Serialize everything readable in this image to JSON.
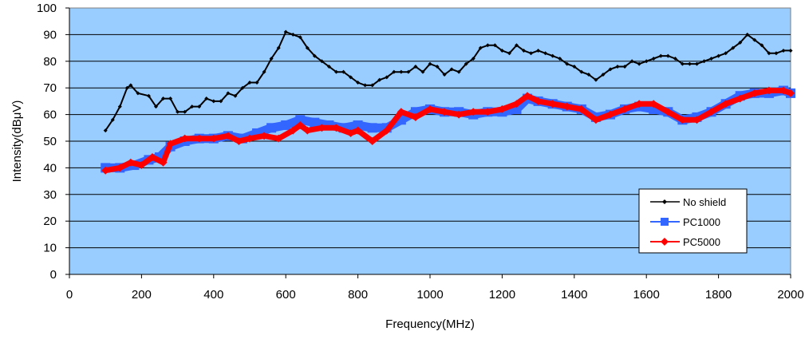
{
  "chart_data": {
    "type": "line",
    "title": "",
    "xlabel": "Frequency(MHz)",
    "ylabel": "Intensity(dBμV)",
    "xlim": [
      0,
      2000
    ],
    "ylim": [
      0,
      100
    ],
    "x_ticks": [
      "0",
      "200",
      "400",
      "600",
      "800",
      "1000",
      "1200",
      "1400",
      "1600",
      "1800",
      "2000"
    ],
    "y_ticks": [
      "0",
      "10",
      "20",
      "30",
      "40",
      "50",
      "60",
      "70",
      "80",
      "90",
      "100"
    ],
    "grid": true,
    "plot_background": "#99ccff",
    "legend_position": "bottom-right",
    "series": [
      {
        "name": "No shield",
        "color": "#000000",
        "marker": "diamond",
        "x": [
          100,
          120,
          140,
          160,
          170,
          190,
          220,
          240,
          260,
          280,
          300,
          320,
          340,
          360,
          380,
          400,
          420,
          440,
          460,
          480,
          500,
          520,
          540,
          560,
          580,
          600,
          620,
          640,
          660,
          680,
          700,
          720,
          740,
          760,
          780,
          800,
          820,
          840,
          860,
          880,
          900,
          920,
          940,
          960,
          980,
          1000,
          1020,
          1040,
          1060,
          1080,
          1100,
          1120,
          1140,
          1160,
          1180,
          1200,
          1220,
          1240,
          1260,
          1280,
          1300,
          1320,
          1340,
          1360,
          1380,
          1400,
          1420,
          1440,
          1460,
          1480,
          1500,
          1520,
          1540,
          1560,
          1580,
          1600,
          1620,
          1640,
          1660,
          1680,
          1700,
          1720,
          1740,
          1760,
          1780,
          1800,
          1820,
          1840,
          1860,
          1880,
          1900,
          1920,
          1940,
          1960,
          1980,
          2000
        ],
        "y": [
          54,
          58,
          63,
          70,
          71,
          68,
          67,
          63,
          66,
          66,
          61,
          61,
          63,
          63,
          66,
          65,
          65,
          68,
          67,
          70,
          72,
          72,
          76,
          81,
          85,
          91,
          90,
          89,
          85,
          82,
          80,
          78,
          76,
          76,
          74,
          72,
          71,
          71,
          73,
          74,
          76,
          76,
          76,
          78,
          76,
          79,
          78,
          75,
          77,
          76,
          79,
          81,
          85,
          86,
          86,
          84,
          83,
          86,
          84,
          83,
          84,
          83,
          82,
          81,
          79,
          78,
          76,
          75,
          73,
          75,
          77,
          78,
          78,
          80,
          79,
          80,
          81,
          82,
          82,
          81,
          79,
          79,
          79,
          80,
          81,
          82,
          83,
          85,
          87,
          90,
          88,
          86,
          83,
          83,
          84,
          84
        ]
      },
      {
        "name": "PC1000",
        "color": "#3366ff",
        "marker": "square",
        "x": [
          100,
          140,
          180,
          220,
          250,
          280,
          320,
          360,
          400,
          440,
          480,
          520,
          560,
          600,
          640,
          680,
          720,
          760,
          800,
          840,
          880,
          920,
          960,
          1000,
          1040,
          1080,
          1120,
          1160,
          1200,
          1240,
          1270,
          1300,
          1340,
          1380,
          1420,
          1460,
          1500,
          1540,
          1580,
          1620,
          1660,
          1700,
          1740,
          1780,
          1820,
          1860,
          1900,
          1940,
          1980,
          2000
        ],
        "y": [
          40,
          40,
          41,
          43,
          44,
          48,
          50,
          51,
          51,
          52,
          51,
          53,
          55,
          56,
          58,
          57,
          56,
          55,
          56,
          55,
          55,
          58,
          61,
          62,
          61,
          61,
          60,
          61,
          61,
          62,
          66,
          65,
          64,
          63,
          62,
          59,
          60,
          62,
          63,
          62,
          61,
          58,
          59,
          61,
          64,
          67,
          68,
          68,
          69,
          68
        ]
      },
      {
        "name": "PC5000",
        "color": "#ff0000",
        "marker": "diamond",
        "x": [
          100,
          140,
          170,
          200,
          230,
          260,
          280,
          320,
          360,
          400,
          440,
          470,
          500,
          540,
          580,
          620,
          640,
          660,
          700,
          740,
          780,
          800,
          840,
          880,
          920,
          960,
          1000,
          1040,
          1080,
          1120,
          1160,
          1200,
          1240,
          1270,
          1300,
          1340,
          1380,
          1420,
          1460,
          1500,
          1540,
          1580,
          1620,
          1660,
          1700,
          1740,
          1780,
          1820,
          1860,
          1900,
          1940,
          1980,
          2000
        ],
        "y": [
          39,
          40,
          42,
          41,
          44,
          42,
          49,
          51,
          51,
          51,
          52,
          50,
          51,
          52,
          51,
          54,
          56,
          54,
          55,
          55,
          53,
          54,
          50,
          54,
          61,
          59,
          62,
          61,
          60,
          61,
          61,
          62,
          64,
          67,
          65,
          64,
          63,
          62,
          58,
          60,
          62,
          64,
          64,
          61,
          58,
          58,
          61,
          64,
          66,
          68,
          69,
          69,
          68
        ]
      }
    ]
  }
}
